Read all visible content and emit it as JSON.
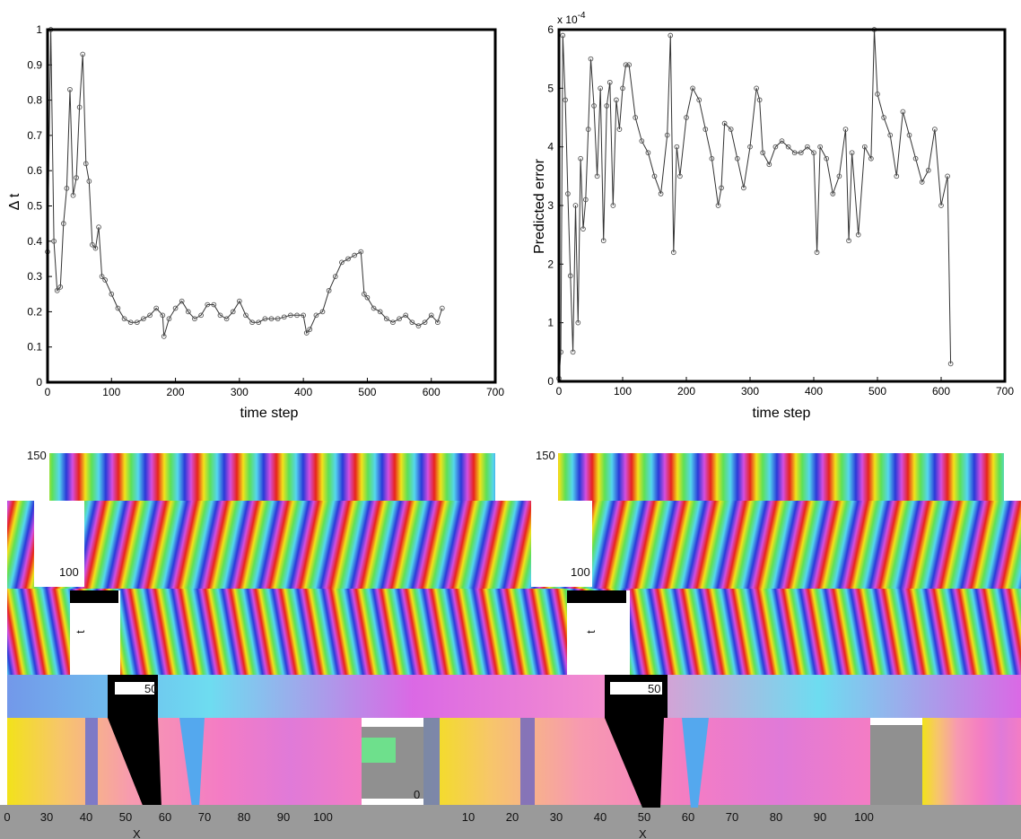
{
  "chart_data": [
    {
      "type": "line",
      "xlabel": "time step",
      "ylabel": "Δ t",
      "xlim": [
        0,
        700
      ],
      "ylim": [
        0,
        1
      ],
      "xticks": [
        "0",
        "100",
        "200",
        "300",
        "400",
        "500",
        "600",
        "700"
      ],
      "yticks": [
        "0",
        "0.1",
        "0.2",
        "0.3",
        "0.4",
        "0.5",
        "0.6",
        "0.7",
        "0.8",
        "0.9",
        "1"
      ],
      "grid": false,
      "x": [
        0,
        5,
        10,
        15,
        20,
        25,
        30,
        35,
        40,
        45,
        50,
        55,
        60,
        65,
        70,
        75,
        80,
        85,
        90,
        100,
        110,
        120,
        130,
        140,
        150,
        160,
        170,
        180,
        182,
        190,
        200,
        210,
        220,
        230,
        240,
        250,
        260,
        270,
        280,
        290,
        300,
        310,
        320,
        330,
        340,
        350,
        360,
        370,
        380,
        390,
        400,
        405,
        410,
        420,
        430,
        440,
        450,
        460,
        470,
        480,
        490,
        495,
        500,
        510,
        520,
        530,
        540,
        550,
        560,
        570,
        580,
        590,
        600,
        610,
        617
      ],
      "values": [
        0.37,
        1.0,
        0.4,
        0.26,
        0.27,
        0.45,
        0.55,
        0.83,
        0.53,
        0.58,
        0.78,
        0.93,
        0.62,
        0.57,
        0.39,
        0.38,
        0.44,
        0.3,
        0.29,
        0.25,
        0.21,
        0.18,
        0.17,
        0.17,
        0.18,
        0.19,
        0.21,
        0.19,
        0.13,
        0.18,
        0.21,
        0.23,
        0.2,
        0.18,
        0.19,
        0.22,
        0.22,
        0.19,
        0.18,
        0.2,
        0.23,
        0.19,
        0.17,
        0.17,
        0.18,
        0.18,
        0.18,
        0.185,
        0.19,
        0.19,
        0.19,
        0.14,
        0.15,
        0.19,
        0.2,
        0.26,
        0.3,
        0.34,
        0.35,
        0.36,
        0.37,
        0.25,
        0.24,
        0.21,
        0.2,
        0.18,
        0.17,
        0.18,
        0.19,
        0.17,
        0.16,
        0.17,
        0.19,
        0.17,
        0.21
      ]
    },
    {
      "type": "line",
      "xlabel": "time step",
      "ylabel": "Predicted error",
      "ylabel_multiplier": "x 10",
      "ylabel_exponent": "-4",
      "xlim": [
        0,
        700
      ],
      "ylim": [
        0,
        6
      ],
      "xticks": [
        "0",
        "100",
        "200",
        "300",
        "400",
        "500",
        "600",
        "700"
      ],
      "yticks": [
        "0",
        "1",
        "2",
        "3",
        "4",
        "5",
        "6"
      ],
      "grid": false,
      "x": [
        0,
        3,
        6,
        10,
        14,
        18,
        22,
        26,
        30,
        34,
        38,
        42,
        46,
        50,
        55,
        60,
        65,
        70,
        75,
        80,
        85,
        90,
        95,
        100,
        105,
        110,
        120,
        130,
        140,
        150,
        160,
        170,
        175,
        180,
        185,
        190,
        200,
        210,
        220,
        230,
        240,
        250,
        255,
        260,
        270,
        280,
        290,
        300,
        310,
        315,
        320,
        330,
        340,
        350,
        360,
        370,
        380,
        390,
        400,
        405,
        410,
        420,
        430,
        440,
        450,
        455,
        460,
        470,
        480,
        490,
        495,
        500,
        510,
        520,
        530,
        540,
        550,
        560,
        570,
        580,
        590,
        600,
        610,
        615
      ],
      "values": [
        0.05,
        0.5,
        5.9,
        4.8,
        3.2,
        1.8,
        0.5,
        3.0,
        1.0,
        3.8,
        2.6,
        3.1,
        4.3,
        5.5,
        4.7,
        3.5,
        5.0,
        2.4,
        4.7,
        5.1,
        3.0,
        4.8,
        4.3,
        5.0,
        5.4,
        5.4,
        4.5,
        4.1,
        3.9,
        3.5,
        3.2,
        4.2,
        5.9,
        2.2,
        4.0,
        3.5,
        4.5,
        5.0,
        4.8,
        4.3,
        3.8,
        3.0,
        3.3,
        4.4,
        4.3,
        3.8,
        3.3,
        4.0,
        5.0,
        4.8,
        3.9,
        3.7,
        4.0,
        4.1,
        4.0,
        3.9,
        3.9,
        4.0,
        3.9,
        2.2,
        4.0,
        3.8,
        3.2,
        3.5,
        4.3,
        2.4,
        3.9,
        2.5,
        4.0,
        3.8,
        6.0,
        4.9,
        4.5,
        4.2,
        3.5,
        4.6,
        4.2,
        3.8,
        3.4,
        3.6,
        4.3,
        3.0,
        3.5,
        0.3
      ]
    }
  ],
  "figures": {
    "left": {
      "y_tick_150": "150",
      "y_tick_100": "100",
      "y_tick_50": "50",
      "y_label": "t",
      "x_ticks": [
        "0",
        "30",
        "40",
        "50",
        "60",
        "70",
        "80",
        "90",
        "100"
      ],
      "x_label": "X"
    },
    "right": {
      "y_tick_150": "150",
      "y_tick_100": "100",
      "y_tick_50": "50",
      "y_tick_0": "0",
      "y_label": "t",
      "x_ticks": [
        "10",
        "20",
        "30",
        "40",
        "50",
        "60",
        "70",
        "80",
        "90",
        "100"
      ],
      "x_ticks_right": [
        "10",
        "20"
      ],
      "x_label": "X"
    }
  },
  "colors": {
    "band_red": "#e8241c",
    "band_yellow": "#f2e21a",
    "band_green": "#5ee056",
    "band_cyan": "#54d6ee",
    "band_blue": "#2a3ad8",
    "band_magenta": "#d44ee0",
    "band_pink": "#f47cc4"
  }
}
